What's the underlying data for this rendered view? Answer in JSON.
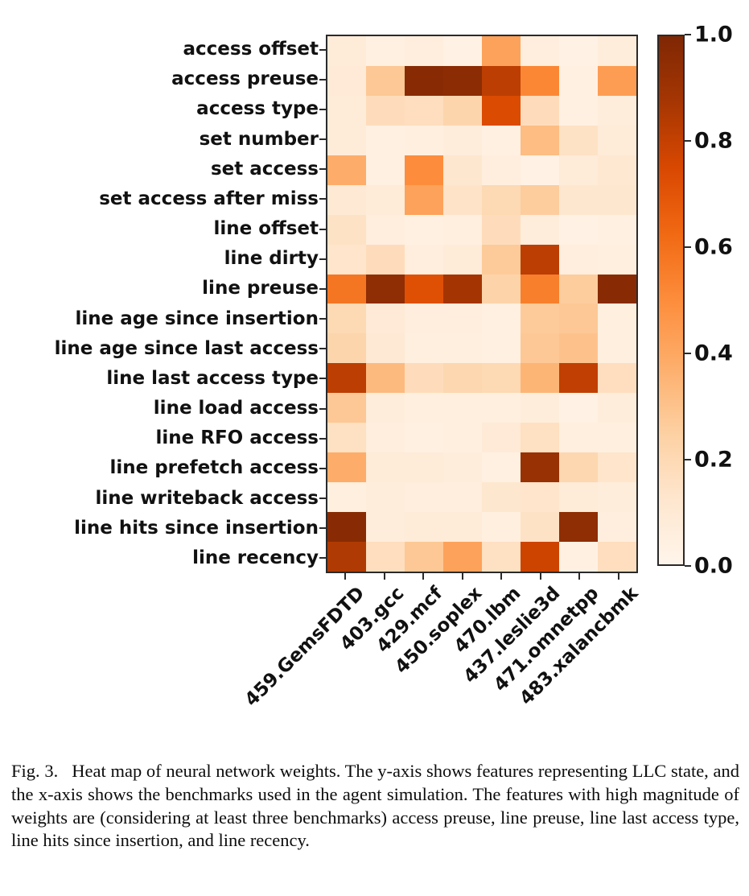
{
  "figure": {
    "background": "#ffffff",
    "axis_color": "#2a2a2a",
    "label_color": "#111111"
  },
  "chart_data": {
    "type": "heatmap",
    "title": "",
    "xlabel": "",
    "ylabel": "",
    "x_categories": [
      "459.GemsFDTD",
      "403.gcc",
      "429.mcf",
      "450.soplex",
      "470.lbm",
      "437.leslie3d",
      "471.omnetpp",
      "483.xalancbmk"
    ],
    "y_categories": [
      "access offset",
      "access preuse",
      "access type",
      "set number",
      "set access",
      "set access after miss",
      "line offset",
      "line dirty",
      "line preuse",
      "line age since insertion",
      "line age since last access",
      "line last access type",
      "line load access",
      "line RFO access",
      "line prefetch access",
      "line writeback access",
      "line hits since insertion",
      "line recency"
    ],
    "values": [
      [
        0.08,
        0.04,
        0.06,
        0.03,
        0.42,
        0.06,
        0.03,
        0.07
      ],
      [
        0.09,
        0.28,
        0.97,
        0.96,
        0.82,
        0.52,
        0.04,
        0.44
      ],
      [
        0.08,
        0.18,
        0.17,
        0.22,
        0.74,
        0.18,
        0.04,
        0.07
      ],
      [
        0.08,
        0.04,
        0.05,
        0.07,
        0.04,
        0.32,
        0.15,
        0.08
      ],
      [
        0.38,
        0.04,
        0.5,
        0.12,
        0.06,
        0.03,
        0.08,
        0.11
      ],
      [
        0.1,
        0.08,
        0.42,
        0.14,
        0.2,
        0.26,
        0.12,
        0.12
      ],
      [
        0.15,
        0.06,
        0.04,
        0.05,
        0.18,
        0.07,
        0.03,
        0.04
      ],
      [
        0.13,
        0.18,
        0.06,
        0.08,
        0.27,
        0.82,
        0.06,
        0.05
      ],
      [
        0.58,
        0.95,
        0.72,
        0.88,
        0.23,
        0.55,
        0.26,
        0.97
      ],
      [
        0.2,
        0.09,
        0.06,
        0.06,
        0.04,
        0.27,
        0.28,
        0.05
      ],
      [
        0.22,
        0.1,
        0.05,
        0.05,
        0.04,
        0.28,
        0.3,
        0.05
      ],
      [
        0.82,
        0.33,
        0.18,
        0.21,
        0.2,
        0.35,
        0.81,
        0.17
      ],
      [
        0.28,
        0.07,
        0.05,
        0.05,
        0.05,
        0.07,
        0.03,
        0.07
      ],
      [
        0.16,
        0.06,
        0.04,
        0.05,
        0.09,
        0.16,
        0.05,
        0.05
      ],
      [
        0.38,
        0.08,
        0.08,
        0.07,
        0.04,
        0.92,
        0.21,
        0.13
      ],
      [
        0.05,
        0.07,
        0.06,
        0.06,
        0.12,
        0.13,
        0.08,
        0.07
      ],
      [
        0.97,
        0.07,
        0.08,
        0.08,
        0.05,
        0.15,
        0.95,
        0.06
      ],
      [
        0.85,
        0.17,
        0.28,
        0.42,
        0.16,
        0.78,
        0.04,
        0.17
      ]
    ],
    "value_range": [
      0.0,
      1.0
    ],
    "grid": false,
    "legend_position": "right-colorbar",
    "colorbar": {
      "tick_labels": [
        "1.0",
        "0.8",
        "0.6",
        "0.4",
        "0.2",
        "0.0"
      ],
      "tick_values": [
        1.0,
        0.8,
        0.6,
        0.4,
        0.2,
        0.0
      ],
      "colormap": "Oranges",
      "stops": [
        [
          0.0,
          "#fff5eb"
        ],
        [
          0.125,
          "#fee6ce"
        ],
        [
          0.25,
          "#fdd0a2"
        ],
        [
          0.375,
          "#fdae6b"
        ],
        [
          0.5,
          "#fd8d3c"
        ],
        [
          0.625,
          "#f16913"
        ],
        [
          0.75,
          "#d94801"
        ],
        [
          0.875,
          "#a63603"
        ],
        [
          1.0,
          "#7f2704"
        ]
      ]
    }
  },
  "caption": {
    "text": "Fig. 3.   Heat map of neural network weights. The y-axis shows features representing LLC state, and the x-axis shows the benchmarks used in the agent simulation. The features with high magnitude of weights are (considering at least three benchmarks) access preuse, line preuse, line last access type, line hits since insertion, and line recency."
  }
}
